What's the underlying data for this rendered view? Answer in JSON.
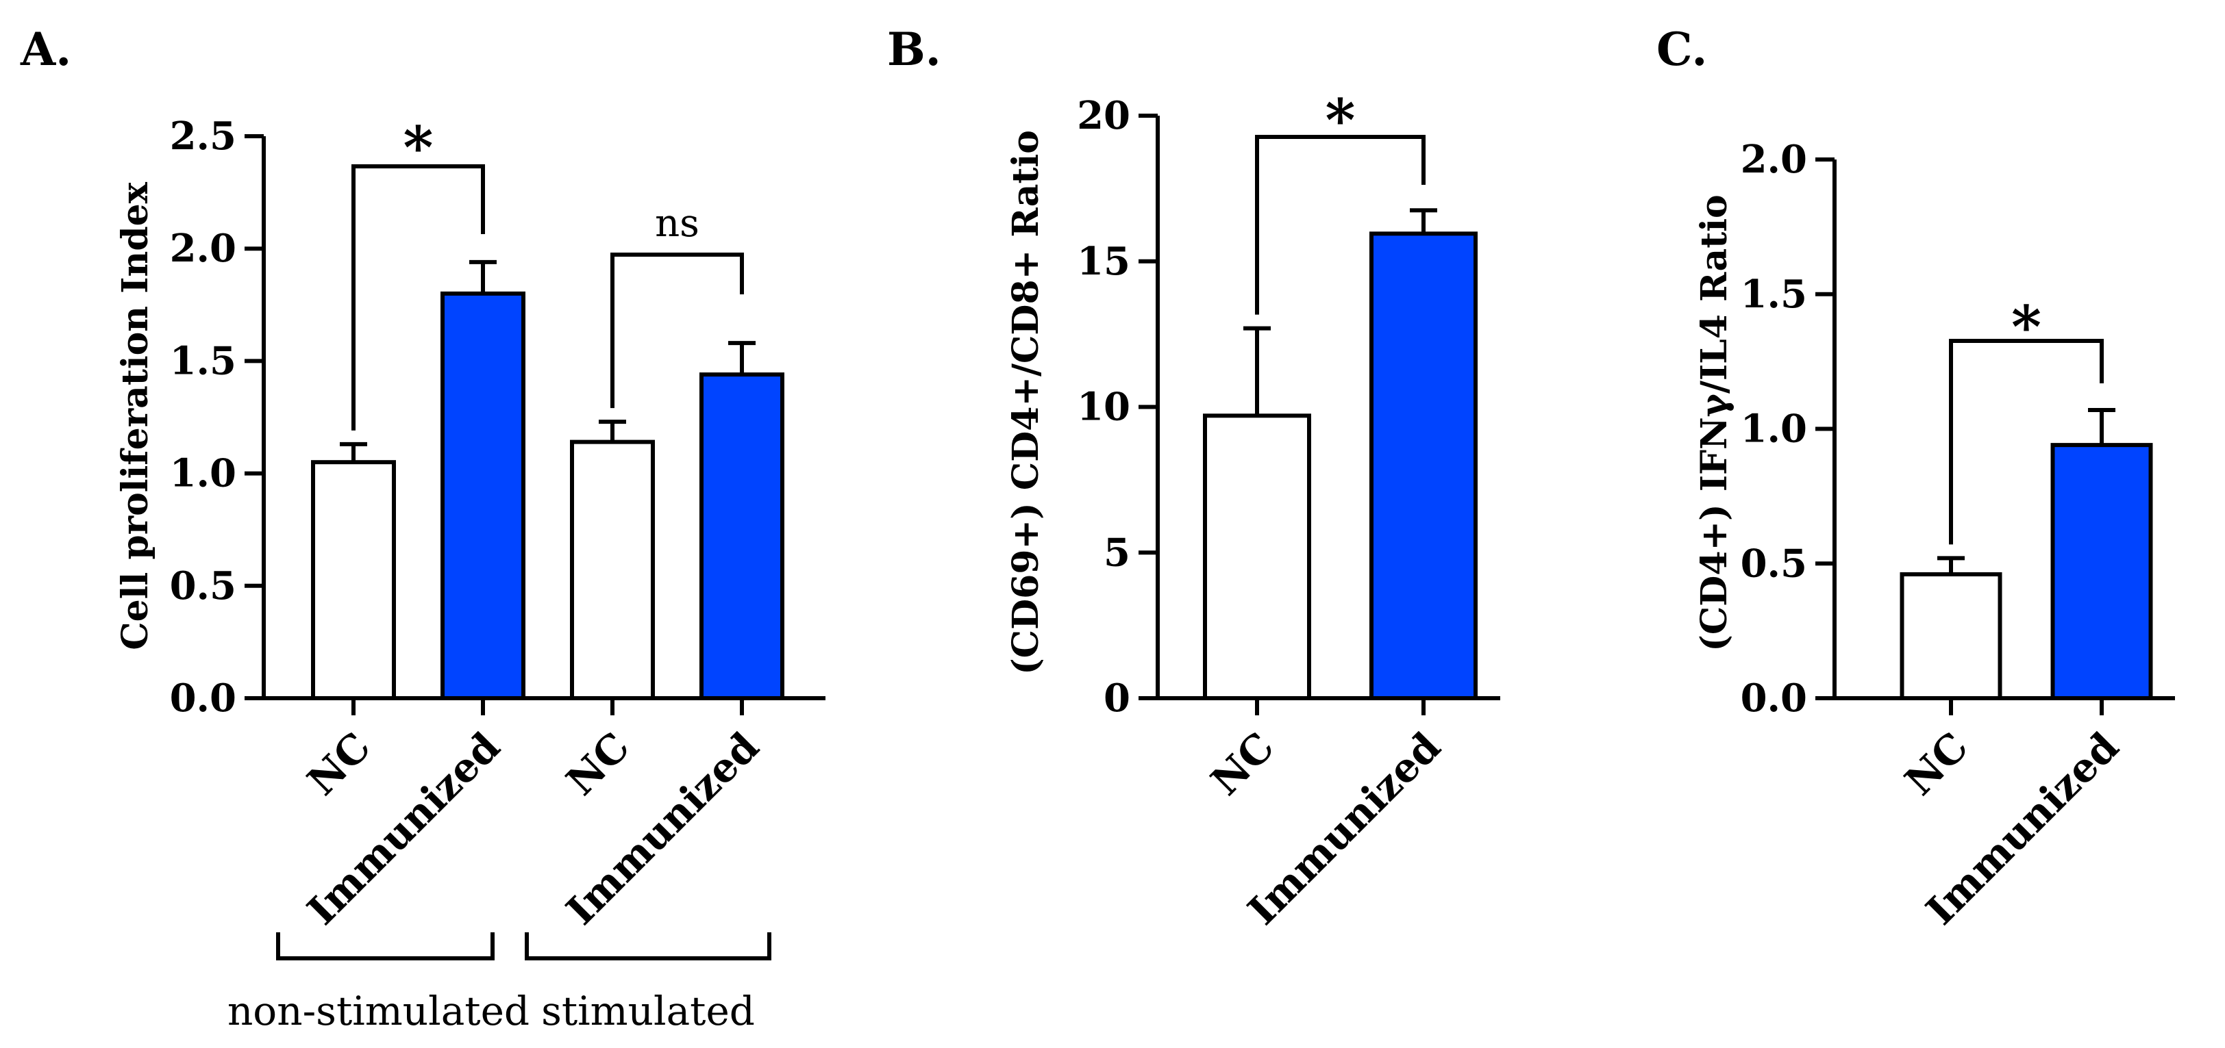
{
  "colors": {
    "nc_fill": "#ffffff",
    "immunized_fill": "#0044ff",
    "stroke": "#000000"
  },
  "chart_data": [
    {
      "panel": "A.",
      "type": "bar",
      "ylabel": "Cell proliferation Index",
      "ylim": [
        0,
        2.5
      ],
      "yticks": [
        "0.0",
        "0.5",
        "1.0",
        "1.5",
        "2.0",
        "2.5"
      ],
      "categories": [
        "NC",
        "Immunized",
        "NC",
        "Immunized"
      ],
      "values": [
        1.05,
        1.8,
        1.14,
        1.44
      ],
      "errors": [
        0.08,
        0.14,
        0.09,
        0.14
      ],
      "fills": [
        "nc",
        "immunized",
        "nc",
        "immunized"
      ],
      "groups": [
        {
          "label": "non-stimulated",
          "from": 0,
          "to": 1
        },
        {
          "label": "stimulated",
          "from": 2,
          "to": 3
        }
      ],
      "comparisons": [
        {
          "from": 0,
          "to": 1,
          "label": "*"
        },
        {
          "from": 2,
          "to": 3,
          "label": "ns"
        }
      ]
    },
    {
      "panel": "B.",
      "type": "bar",
      "ylabel": "(CD69+) CD4+/CD8+ Ratio",
      "ylim": [
        0,
        20
      ],
      "yticks": [
        "0",
        "5",
        "10",
        "15",
        "20"
      ],
      "categories": [
        "NC",
        "Immunized"
      ],
      "values": [
        9.7,
        15.95
      ],
      "errors": [
        3.0,
        0.8
      ],
      "fills": [
        "nc",
        "immunized"
      ],
      "groups": [],
      "comparisons": [
        {
          "from": 0,
          "to": 1,
          "label": "*"
        }
      ]
    },
    {
      "panel": "C.",
      "type": "bar",
      "ylabel": "(CD4+) IFNγ/IL4 Ratio",
      "ylim": [
        0,
        2.0
      ],
      "yticks": [
        "0.0",
        "0.5",
        "1.0",
        "1.5",
        "2.0"
      ],
      "categories": [
        "NC",
        "Immunized"
      ],
      "values": [
        0.46,
        0.94
      ],
      "errors": [
        0.06,
        0.13
      ],
      "fills": [
        "nc",
        "immunized"
      ],
      "groups": [],
      "comparisons": [
        {
          "from": 0,
          "to": 1,
          "label": "*"
        }
      ]
    }
  ]
}
